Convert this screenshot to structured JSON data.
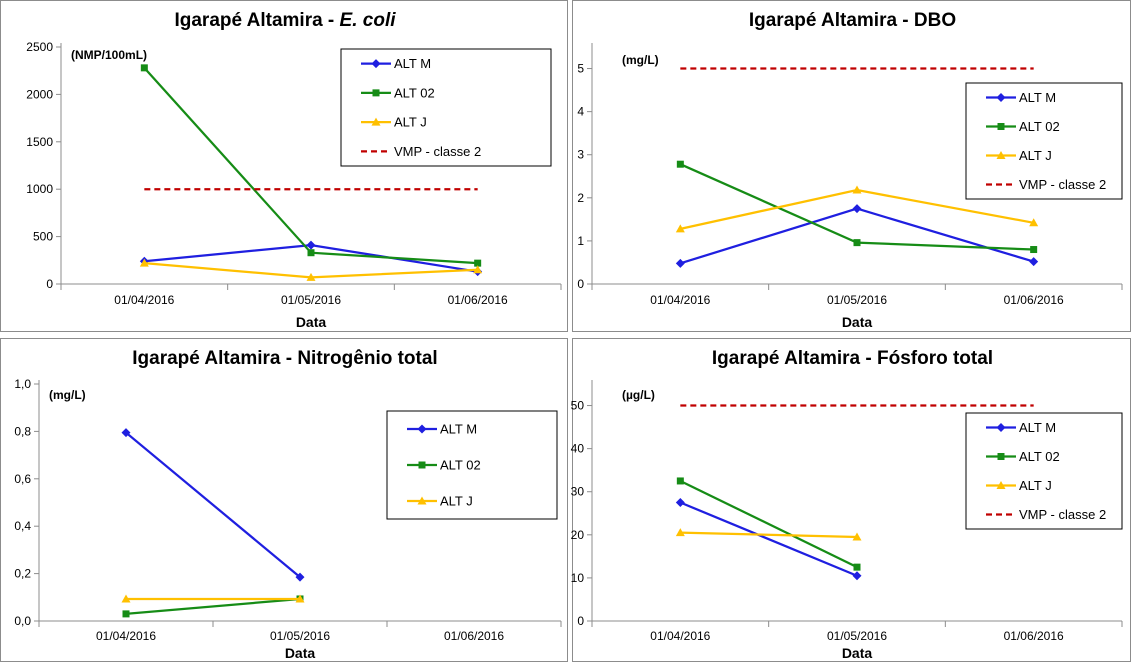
{
  "colors": {
    "alt_m": "#1f1fe0",
    "alt_02": "#168c16",
    "alt_j": "#ffc000",
    "vmp": "#c00000"
  },
  "chart_data": [
    {
      "type": "line",
      "title": "Igarapé Altamira - ",
      "title_italic": "E. coli",
      "unit": "(NMP/100mL)",
      "xlabel": "Data",
      "categories": [
        "01/04/2016",
        "01/05/2016",
        "01/06/2016"
      ],
      "ylim": [
        0,
        2500
      ],
      "yticks": [
        0,
        500,
        1000,
        1500,
        2000,
        2500
      ],
      "ytick_labels": [
        "0",
        "500",
        "1000",
        "1500",
        "2000",
        "2500"
      ],
      "series": [
        {
          "name": "ALT M",
          "values": [
            240,
            410,
            130
          ]
        },
        {
          "name": "ALT 02",
          "values": [
            2280,
            330,
            220
          ]
        },
        {
          "name": "ALT J",
          "values": [
            220,
            70,
            150
          ]
        },
        {
          "name": "VMP - classe 2",
          "values": [
            1000,
            1000,
            1000
          ]
        }
      ],
      "legend": "top-right"
    },
    {
      "type": "line",
      "title": "Igarapé Altamira - DBO",
      "unit": "(mg/L)",
      "xlabel": "Data",
      "categories": [
        "01/04/2016",
        "01/05/2016",
        "01/06/2016"
      ],
      "ylim": [
        0,
        5.5
      ],
      "yticks": [
        0,
        1,
        2,
        3,
        4,
        5
      ],
      "ytick_labels": [
        "0",
        "1",
        "2",
        "3",
        "4",
        "5"
      ],
      "series": [
        {
          "name": "ALT M",
          "values": [
            0.48,
            1.75,
            0.52
          ]
        },
        {
          "name": "ALT 02",
          "values": [
            2.78,
            0.96,
            0.8
          ]
        },
        {
          "name": "ALT J",
          "values": [
            1.28,
            2.18,
            1.42
          ]
        },
        {
          "name": "VMP - classe 2",
          "values": [
            5,
            5,
            5
          ]
        }
      ],
      "legend": "right"
    },
    {
      "type": "line",
      "title": "Igarapé Altamira - Nitrogênio total",
      "unit": "(mg/L)",
      "xlabel": "Data",
      "categories": [
        "01/04/2016",
        "01/05/2016",
        "01/06/2016"
      ],
      "ylim": [
        0,
        1.0
      ],
      "yticks": [
        0,
        0.2,
        0.4,
        0.6,
        0.8,
        1.0
      ],
      "ytick_labels": [
        "0,0",
        "0,2",
        "0,4",
        "0,6",
        "0,8",
        "1,0"
      ],
      "series": [
        {
          "name": "ALT M",
          "values": [
            0.795,
            0.185,
            null
          ]
        },
        {
          "name": "ALT 02",
          "values": [
            0.03,
            0.093,
            null
          ]
        },
        {
          "name": "ALT J",
          "values": [
            0.093,
            0.093,
            null
          ]
        }
      ],
      "legend": "right"
    },
    {
      "type": "line",
      "title": "Igarapé Altamira - Fósforo total",
      "unit": "(µg/L)",
      "xlabel": "Data",
      "categories": [
        "01/04/2016",
        "01/05/2016",
        "01/06/2016"
      ],
      "ylim": [
        0,
        55
      ],
      "yticks": [
        0,
        10,
        20,
        30,
        40,
        50
      ],
      "ytick_labels": [
        "0",
        "10",
        "20",
        "30",
        "40",
        "50"
      ],
      "series": [
        {
          "name": "ALT M",
          "values": [
            27.5,
            10.5,
            null
          ]
        },
        {
          "name": "ALT 02",
          "values": [
            32.5,
            12.5,
            null
          ]
        },
        {
          "name": "ALT J",
          "values": [
            20.5,
            19.5,
            null
          ]
        },
        {
          "name": "VMP - classe 2",
          "values": [
            50,
            50,
            50
          ]
        }
      ],
      "legend": "right"
    }
  ]
}
